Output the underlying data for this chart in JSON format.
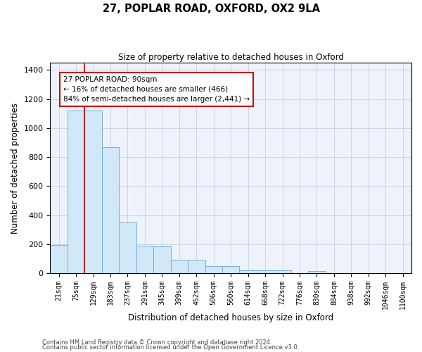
{
  "title": "27, POPLAR ROAD, OXFORD, OX2 9LA",
  "subtitle": "Size of property relative to detached houses in Oxford",
  "xlabel": "Distribution of detached houses by size in Oxford",
  "ylabel": "Number of detached properties",
  "footnote1": "Contains HM Land Registry data © Crown copyright and database right 2024.",
  "footnote2": "Contains public sector information licensed under the Open Government Licence v3.0.",
  "annotation_title": "27 POPLAR ROAD: 90sqm",
  "annotation_line2": "← 16% of detached houses are smaller (466)",
  "annotation_line3": "84% of semi-detached houses are larger (2,441) →",
  "bar_edge_color": "#7bafd4",
  "bar_face_color": "#d0e8f8",
  "vline_color": "#cc0000",
  "annotation_box_edge": "#cc0000",
  "bg_color": "#eef2fb",
  "grid_color": "#c0c8dc",
  "categories": [
    "21sqm",
    "75sqm",
    "129sqm",
    "183sqm",
    "237sqm",
    "291sqm",
    "345sqm",
    "399sqm",
    "452sqm",
    "506sqm",
    "560sqm",
    "614sqm",
    "668sqm",
    "722sqm",
    "776sqm",
    "830sqm",
    "884sqm",
    "938sqm",
    "992sqm",
    "1046sqm",
    "1100sqm"
  ],
  "values": [
    195,
    1120,
    1120,
    870,
    350,
    190,
    185,
    95,
    95,
    50,
    48,
    22,
    18,
    18,
    0,
    15,
    0,
    0,
    0,
    0,
    0
  ],
  "ylim": [
    0,
    1450
  ],
  "yticks": [
    0,
    200,
    400,
    600,
    800,
    1000,
    1200,
    1400
  ],
  "vline_x": 1.5
}
